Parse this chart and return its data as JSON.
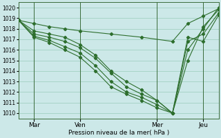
{
  "background_color": "#cce8e8",
  "grid_color": "#99ccbb",
  "line_color": "#2d6e2d",
  "xlabel": "Pression niveau de la mer( hPa )",
  "ylim": [
    1009.5,
    1020.5
  ],
  "yticks": [
    1010,
    1011,
    1012,
    1013,
    1014,
    1015,
    1016,
    1017,
    1018,
    1019,
    1020
  ],
  "xlim": [
    0,
    312
  ],
  "xtick_labels": [
    "Mar",
    "Ven",
    "Mer",
    "Jeu"
  ],
  "xtick_positions": [
    24,
    96,
    216,
    288
  ],
  "vlines": [
    24,
    96,
    216,
    288
  ],
  "series": [
    {
      "x": [
        0,
        24,
        48,
        72,
        96,
        144,
        192,
        240,
        264,
        288,
        312
      ],
      "y": [
        1018.8,
        1018.5,
        1018.2,
        1018.0,
        1017.8,
        1017.5,
        1017.2,
        1016.8,
        1018.5,
        1019.2,
        1019.9
      ]
    },
    {
      "x": [
        0,
        24,
        48,
        72,
        96,
        120,
        144,
        168,
        192,
        216,
        240,
        264,
        288,
        312
      ],
      "y": [
        1018.8,
        1017.8,
        1017.5,
        1017.2,
        1016.5,
        1015.5,
        1014.0,
        1013.0,
        1012.2,
        1011.2,
        1010.0,
        1015.0,
        1018.2,
        1019.8
      ]
    },
    {
      "x": [
        0,
        24,
        48,
        72,
        96,
        120,
        144,
        168,
        192,
        216,
        240,
        264,
        288,
        312
      ],
      "y": [
        1018.8,
        1017.5,
        1017.2,
        1016.8,
        1016.2,
        1015.2,
        1013.8,
        1012.5,
        1011.8,
        1011.2,
        1010.0,
        1016.0,
        1018.0,
        1020.0
      ]
    },
    {
      "x": [
        0,
        24,
        48,
        72,
        96,
        120,
        144,
        168,
        192,
        216,
        240,
        264,
        288,
        312
      ],
      "y": [
        1018.8,
        1017.3,
        1016.9,
        1016.3,
        1015.7,
        1014.5,
        1013.0,
        1012.0,
        1011.5,
        1010.8,
        1010.0,
        1016.8,
        1017.5,
        1019.5
      ]
    },
    {
      "x": [
        0,
        24,
        48,
        72,
        96,
        120,
        144,
        168,
        192,
        216,
        240,
        264,
        288,
        312
      ],
      "y": [
        1018.8,
        1017.2,
        1016.7,
        1016.0,
        1015.3,
        1014.0,
        1012.5,
        1011.8,
        1011.2,
        1010.5,
        1010.0,
        1017.2,
        1016.8,
        1019.3
      ]
    }
  ]
}
